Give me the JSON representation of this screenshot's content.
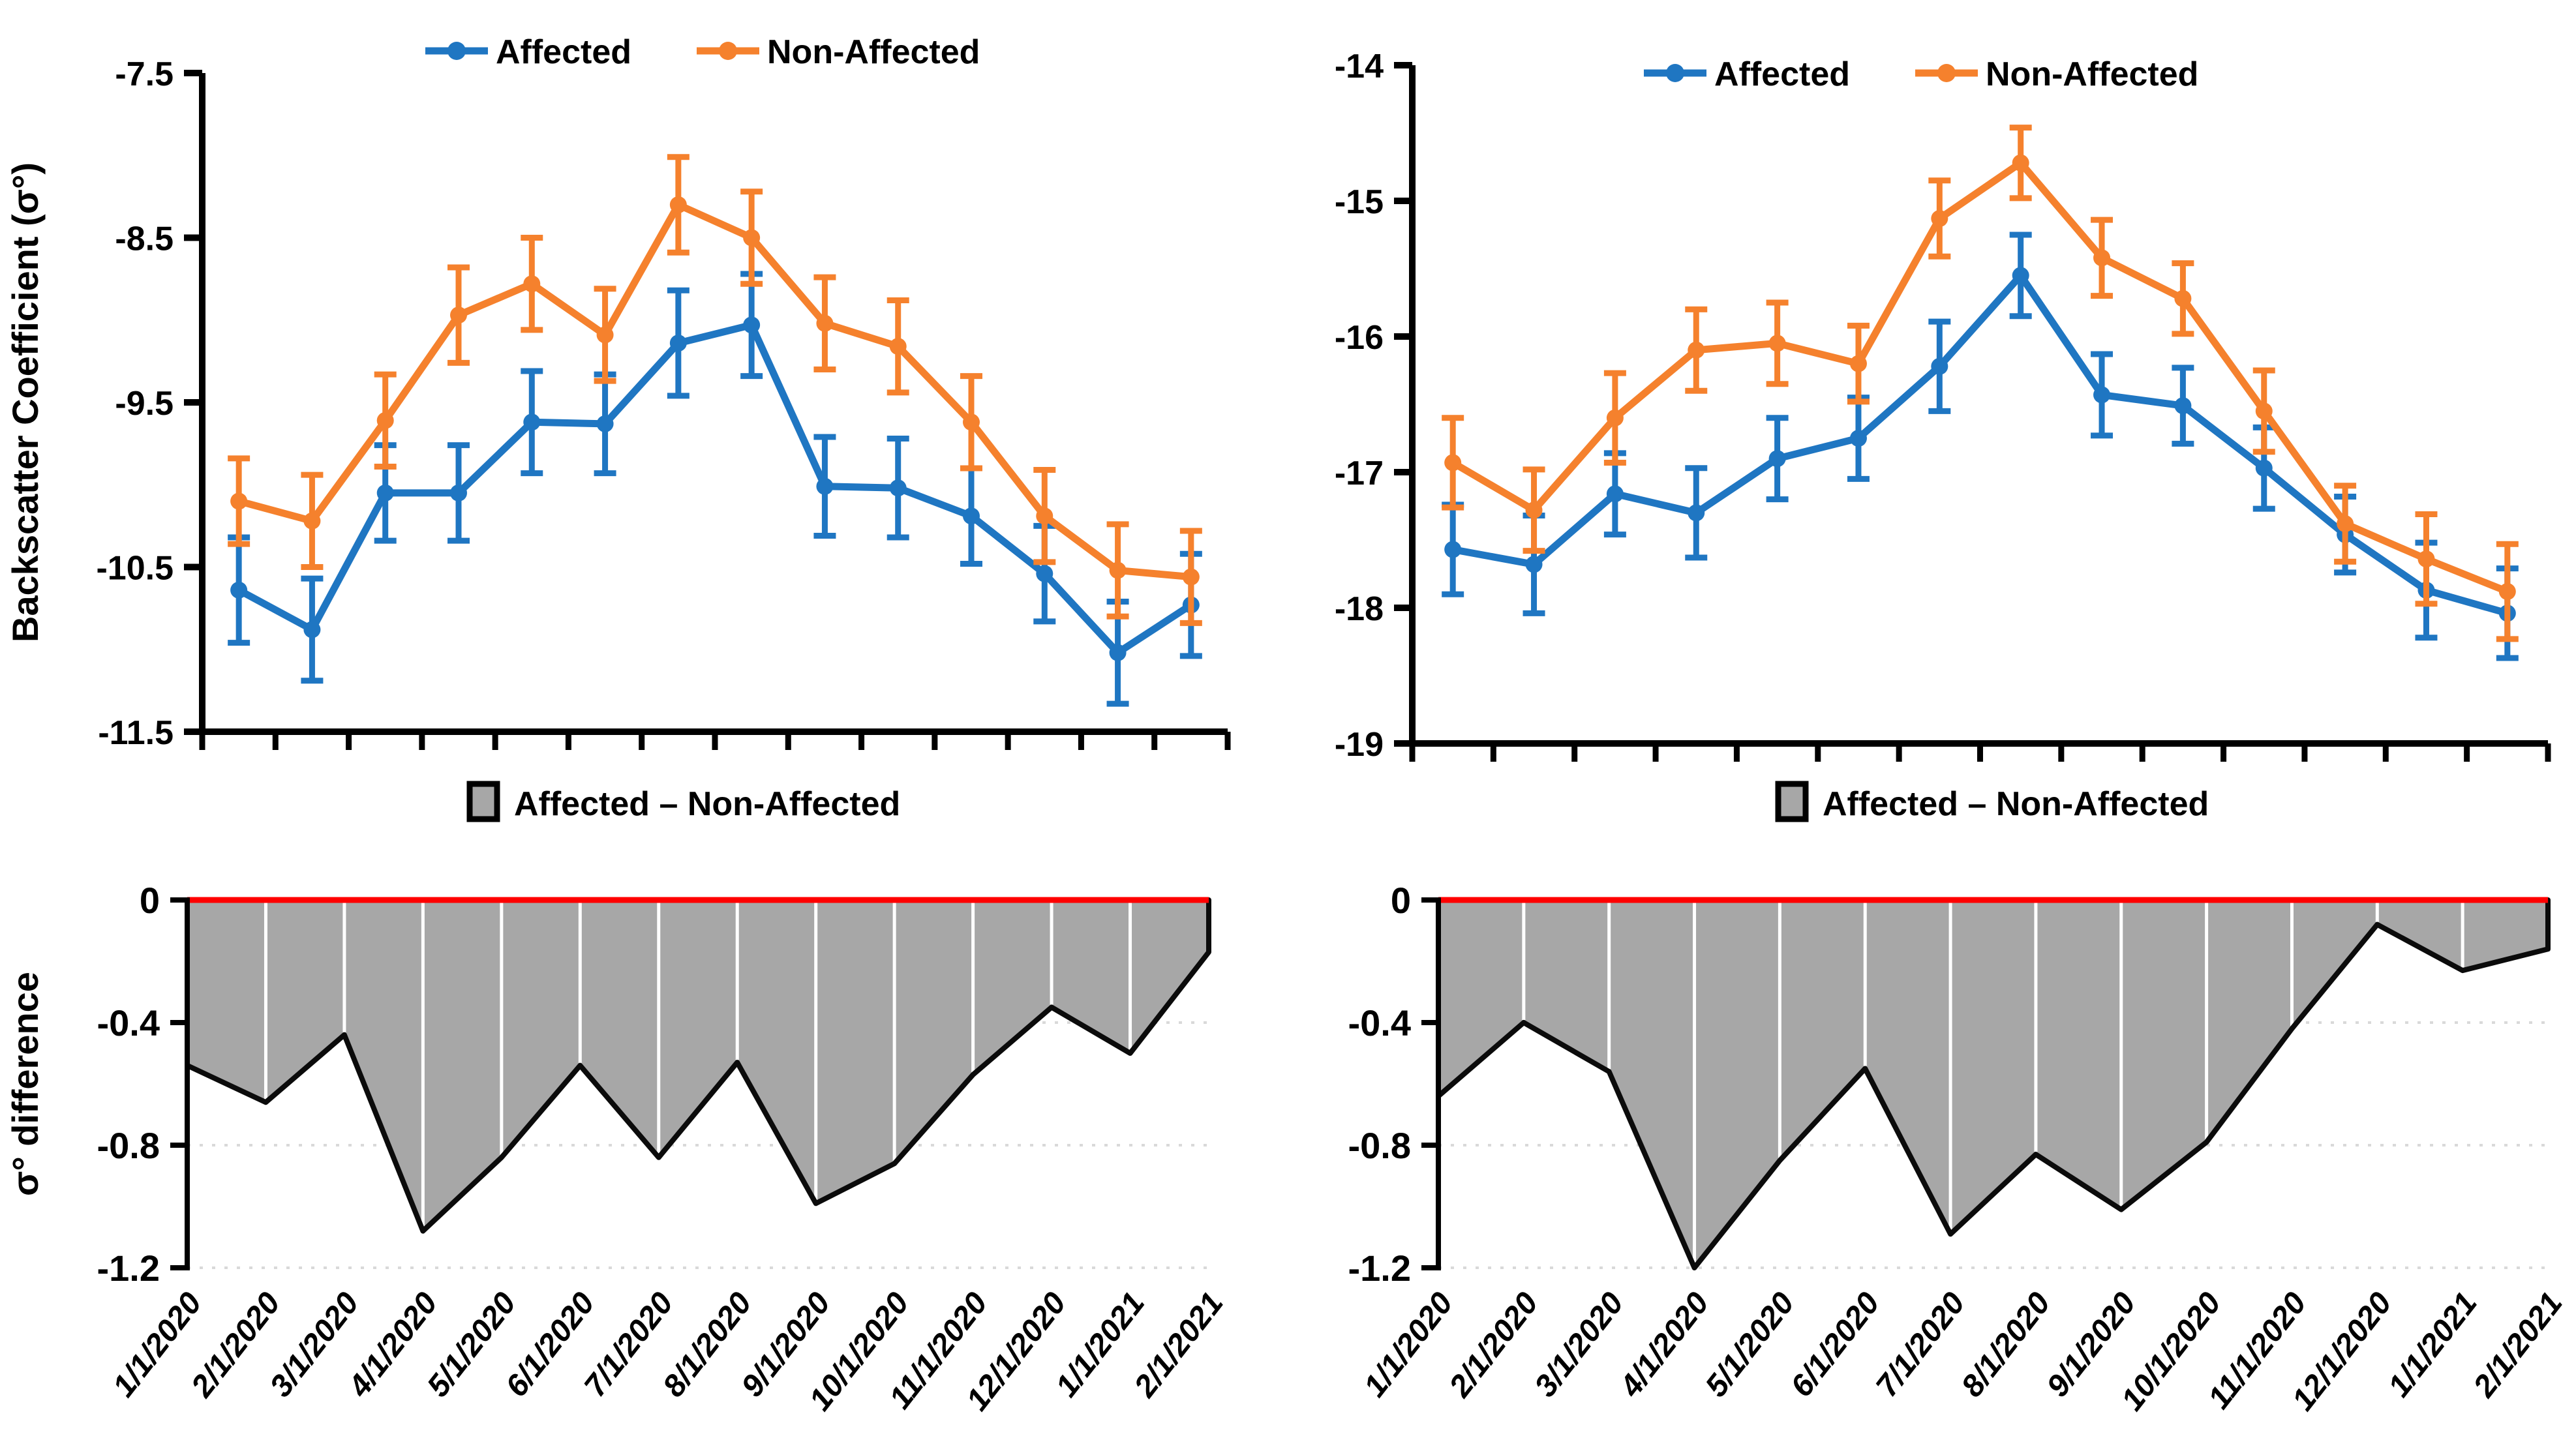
{
  "legend": {
    "affected": "Affected",
    "non_affected": "Non-Affected",
    "difference": "Affected – Non-Affected"
  },
  "ylabels": {
    "backscatter": "Backscatter Coefficient (σ°)",
    "difference": "σ° difference"
  },
  "colors": {
    "affected": "#1F76C2",
    "non_affected": "#F5812D",
    "area_fill": "#A7A7A7",
    "area_outline": "#0B0B0B",
    "zero_line": "#FF0000",
    "axis": "#000000",
    "gridline": "#D9D9D9",
    "white_gridline": "#FFFFFF"
  },
  "categories": [
    "1/1/2020",
    "2/1/2020",
    "3/1/2020",
    "4/1/2020",
    "5/1/2020",
    "6/1/2020",
    "7/1/2020",
    "8/1/2020",
    "9/1/2020",
    "10/1/2020",
    "11/1/2020",
    "12/1/2020",
    "1/1/2021",
    "2/1/2021"
  ],
  "chart_data": [
    {
      "id": "top_left",
      "type": "line",
      "title": "",
      "ylabel": "Backscatter Coefficient (σ°)",
      "xlabel": "",
      "ylim": [
        -11.5,
        -7.5
      ],
      "yticks": [
        "-7.5",
        "-8.5",
        "-9.5",
        "-10.5",
        "-11.5"
      ],
      "grid": false,
      "legend_position": "top",
      "categories": [
        "1/1/2020",
        "2/1/2020",
        "3/1/2020",
        "4/1/2020",
        "5/1/2020",
        "6/1/2020",
        "7/1/2020",
        "8/1/2020",
        "9/1/2020",
        "10/1/2020",
        "11/1/2020",
        "12/1/2020",
        "1/1/2021",
        "2/1/2021"
      ],
      "series": [
        {
          "name": "Affected",
          "color_key": "affected",
          "values": [
            -10.64,
            -10.88,
            -10.05,
            -10.05,
            -9.62,
            -9.63,
            -9.14,
            -9.03,
            -10.01,
            -10.02,
            -10.19,
            -10.54,
            -11.02,
            -10.73
          ],
          "errors": [
            0.32,
            0.31,
            0.29,
            0.29,
            0.31,
            0.3,
            0.32,
            0.31,
            0.3,
            0.3,
            0.29,
            0.29,
            0.31,
            0.31
          ]
        },
        {
          "name": "Non-Affected",
          "color_key": "non_affected",
          "values": [
            -10.1,
            -10.22,
            -9.61,
            -8.97,
            -8.78,
            -9.09,
            -8.3,
            -8.5,
            -9.02,
            -9.16,
            -9.62,
            -10.19,
            -10.52,
            -10.56
          ],
          "errors": [
            0.26,
            0.28,
            0.28,
            0.29,
            0.28,
            0.28,
            0.29,
            0.28,
            0.28,
            0.28,
            0.28,
            0.28,
            0.28,
            0.28
          ]
        }
      ]
    },
    {
      "id": "top_right",
      "type": "line",
      "title": "",
      "ylabel": "",
      "xlabel": "",
      "ylim": [
        -19,
        -14
      ],
      "yticks": [
        "-14",
        "-15",
        "-16",
        "-17",
        "-18",
        "-19"
      ],
      "grid": false,
      "legend_position": "top",
      "categories": [
        "1/1/2020",
        "2/1/2020",
        "3/1/2020",
        "4/1/2020",
        "5/1/2020",
        "6/1/2020",
        "7/1/2020",
        "8/1/2020",
        "9/1/2020",
        "10/1/2020",
        "11/1/2020",
        "12/1/2020",
        "1/1/2021",
        "2/1/2021"
      ],
      "series": [
        {
          "name": "Affected",
          "color_key": "affected",
          "values": [
            -17.57,
            -17.68,
            -17.16,
            -17.3,
            -16.9,
            -16.75,
            -16.22,
            -15.55,
            -16.43,
            -16.51,
            -16.97,
            -17.46,
            -17.87,
            -18.04
          ],
          "errors": [
            0.33,
            0.36,
            0.3,
            0.33,
            0.3,
            0.3,
            0.33,
            0.3,
            0.3,
            0.28,
            0.3,
            0.28,
            0.35,
            0.33
          ]
        },
        {
          "name": "Non-Affected",
          "color_key": "non_affected",
          "values": [
            -16.93,
            -17.28,
            -16.6,
            -16.1,
            -16.05,
            -16.2,
            -15.13,
            -14.72,
            -15.42,
            -15.72,
            -16.55,
            -17.38,
            -17.64,
            -17.88
          ],
          "errors": [
            0.33,
            0.3,
            0.33,
            0.3,
            0.3,
            0.28,
            0.28,
            0.26,
            0.28,
            0.26,
            0.3,
            0.28,
            0.33,
            0.35
          ]
        }
      ]
    },
    {
      "id": "bottom_left",
      "type": "area",
      "title": "Affected – Non-Affected",
      "ylabel": "σ° difference",
      "xlabel": "",
      "ylim": [
        -1.2,
        0
      ],
      "yticks": [
        "0",
        "-0.4",
        "-0.8",
        "-1.2"
      ],
      "grid": true,
      "zero_line": true,
      "categories": [
        "1/1/2020",
        "2/1/2020",
        "3/1/2020",
        "4/1/2020",
        "5/1/2020",
        "6/1/2020",
        "7/1/2020",
        "8/1/2020",
        "9/1/2020",
        "10/1/2020",
        "11/1/2020",
        "12/1/2020",
        "1/1/2021",
        "2/1/2021"
      ],
      "values": [
        -0.54,
        -0.66,
        -0.44,
        -1.08,
        -0.84,
        -0.54,
        -0.84,
        -0.53,
        -0.99,
        -0.86,
        -0.57,
        -0.35,
        -0.5,
        -0.17
      ]
    },
    {
      "id": "bottom_right",
      "type": "area",
      "title": "Affected – Non-Affected",
      "ylabel": "",
      "xlabel": "",
      "ylim": [
        -1.2,
        0
      ],
      "yticks": [
        "0",
        "-0.4",
        "-0.8",
        "-1.2"
      ],
      "grid": true,
      "zero_line": true,
      "categories": [
        "1/1/2020",
        "2/1/2020",
        "3/1/2020",
        "4/1/2020",
        "5/1/2020",
        "6/1/2020",
        "7/1/2020",
        "8/1/2020",
        "9/1/2020",
        "10/1/2020",
        "11/1/2020",
        "12/1/2020",
        "1/1/2021",
        "2/1/2021"
      ],
      "values": [
        -0.64,
        -0.4,
        -0.56,
        -1.2,
        -0.85,
        -0.55,
        -1.09,
        -0.83,
        -1.01,
        -0.79,
        -0.42,
        -0.08,
        -0.23,
        -0.16
      ]
    }
  ]
}
